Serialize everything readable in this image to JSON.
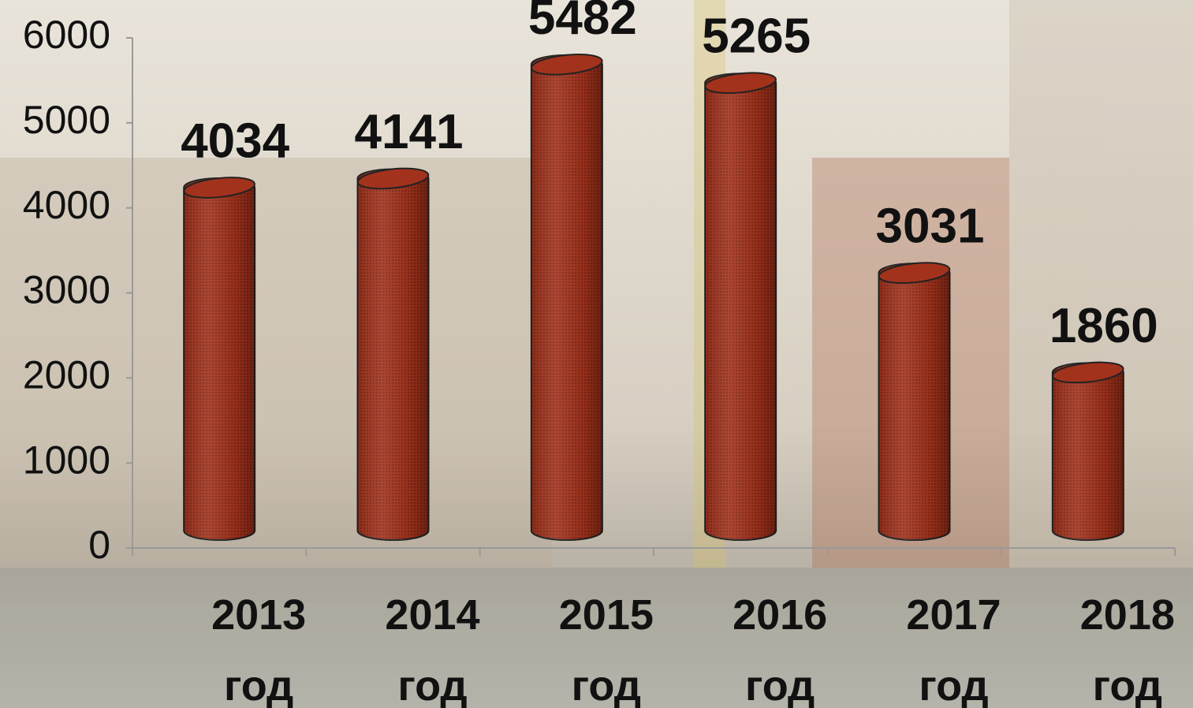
{
  "chart_data": {
    "type": "bar",
    "categories": [
      "2013 год",
      "2014 год",
      "2015 год",
      "2016 год",
      "2017 год",
      "2018 год"
    ],
    "values": [
      4034,
      4141,
      5482,
      5265,
      3031,
      1860
    ],
    "color": "#a3321c",
    "ylim": [
      0,
      6000
    ],
    "yticks": [
      0,
      1000,
      2000,
      3000,
      4000,
      5000,
      6000
    ]
  }
}
